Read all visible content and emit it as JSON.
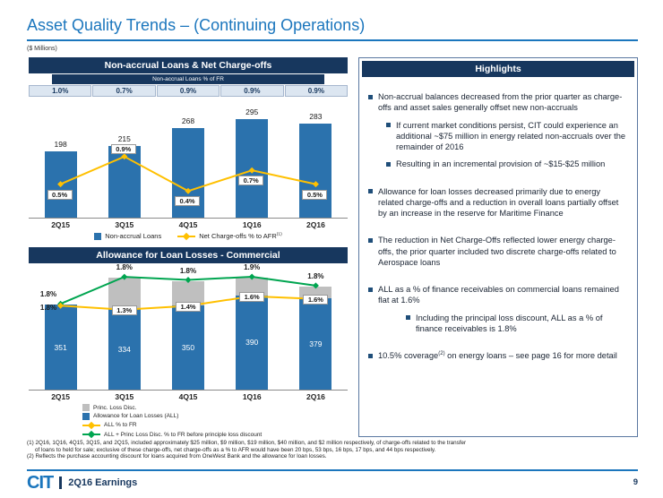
{
  "header": {
    "title": "Asset Quality Trends – (Continuing Operations)",
    "units": "($ Millions)"
  },
  "chart_data": [
    {
      "type": "bar",
      "title": "Non-accrual Loans & Net Charge-offs",
      "subheader": "Non-accrual Loans % of FR",
      "fr_pct_row": [
        "1.0%",
        "0.7%",
        "0.9%",
        "0.9%",
        "0.9%"
      ],
      "categories": [
        "2Q15",
        "3Q15",
        "4Q15",
        "1Q16",
        "2Q16"
      ],
      "series": [
        {
          "name": "Non-accrual Loans",
          "type": "bar",
          "values": [
            198,
            215,
            268,
            295,
            283
          ],
          "color": "#2B72AD"
        },
        {
          "name": "Net Charge-offs % to AFR",
          "name_sup": "(1)",
          "type": "line",
          "values": [
            0.5,
            0.9,
            0.4,
            0.7,
            0.5
          ],
          "unit": "%",
          "color": "#FFC000",
          "label_pos": [
            "below",
            "above",
            "below",
            "below",
            "below"
          ]
        }
      ],
      "bar_axis_max": 330,
      "line_axis_max": 1.6,
      "legend_position": "bottom",
      "grid": false
    },
    {
      "type": "bar",
      "title": "Allowance for Loan Losses - Commercial",
      "categories": [
        "2Q15",
        "3Q15",
        "4Q15",
        "1Q16",
        "2Q16"
      ],
      "series": [
        {
          "name": "Princ. Loss Disc.",
          "type": "bar-stack",
          "color": "#BFBFBF"
        },
        {
          "name": "Allowance for Loan Losses (ALL)",
          "type": "bar",
          "values": [
            351,
            334,
            350,
            390,
            379
          ],
          "color": "#2B72AD"
        },
        {
          "name": "ALL % to FR",
          "type": "line",
          "values": [
            1.8,
            1.3,
            1.4,
            1.6,
            1.6
          ],
          "unit": "%",
          "color": "#FFC000"
        },
        {
          "name": "ALL + Princ Loss Disc. % to FR before principle loss discount",
          "type": "line",
          "values": [
            1.8,
            1.8,
            1.8,
            1.9,
            1.8
          ],
          "unit": "%",
          "color": "#00A550"
        }
      ],
      "bar_axis_max": 500,
      "legend_position": "bottom",
      "grid": false
    }
  ],
  "highlights": {
    "title": "Highlights",
    "bullets": [
      {
        "text": "Non-accrual balances decreased from the prior quarter as charge-offs and asset sales generally offset new non-accruals",
        "sub": [
          "If current market conditions persist, CIT could experience an additional ~$75 million in energy related non-accruals over the remainder of 2016",
          "Resulting in an incremental provision of ~$15-$25 million"
        ]
      },
      {
        "text": "Allowance for loan losses decreased primarily due to energy related charge-offs and a reduction in overall loans partially offset by an increase in the reserve for Maritime Finance"
      },
      {
        "text": "The reduction in Net Charge-Offs reflected lower energy charge-offs, the prior quarter included two discrete charge-offs related to Aerospace loans"
      },
      {
        "text": "ALL as a % of finance receivables on commercial loans remained flat at 1.6%",
        "sub": [
          "Including the principal loss discount, ALL as a % of finance receivables is 1.8%"
        ]
      },
      {
        "pre": "10.5% coverage",
        "sup": "(2)",
        "post": " on energy loans – see page 16 for more detail"
      }
    ]
  },
  "footnotes": [
    "(1) 2Q16, 1Q16, 4Q15, 3Q15, and 2Q15, included approximately $25 million, $9 million, $19 million, $40 million, and $2 million respectively, of charge-offs related to the transfer",
    "of loans to held for sale; exclusive of these charge-offs, net charge-offs as a % to AFR would have been 20 bps, 53 bps, 16 bps, 17 bps, and 44 bps respectively.",
    "(2) Reflects the purchase accounting discount for loans acquired from OneWest Bank and the allowance for loan losses."
  ],
  "footer": {
    "logo": "CIT",
    "label": "2Q16 Earnings",
    "page": "9"
  },
  "colors": {
    "navy_header": "#17375E",
    "title_blue": "#1B76BD",
    "bar_blue": "#2B72AD",
    "line_yellow": "#FFC000",
    "line_green": "#00A550",
    "princ_loss_gray": "#BFBFBF",
    "pct_cell_bg": "#DCE6F1"
  }
}
